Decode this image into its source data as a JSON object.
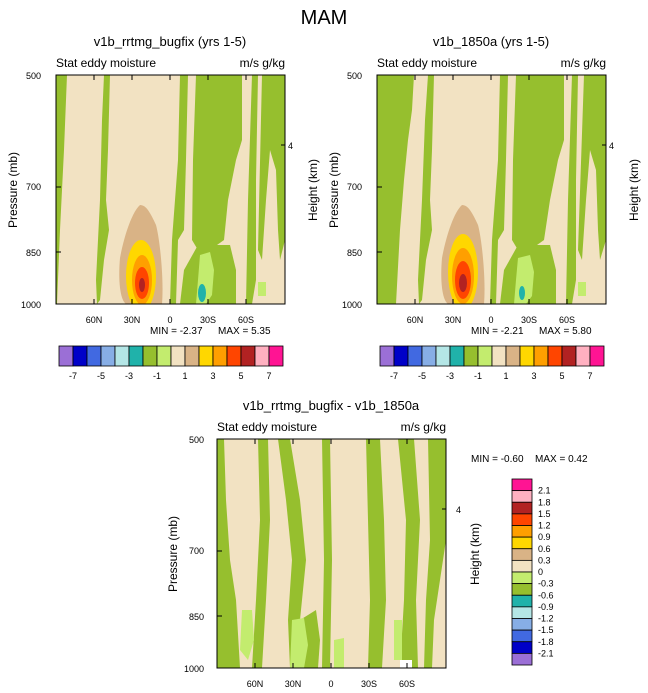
{
  "page_title": "MAM",
  "colors": {
    "beige": "#f2e2c2",
    "green": "#96bf2e",
    "lightgreen": "#c3ec6e",
    "tan": "#d9b386",
    "yellow": "#ffd700",
    "orange": "#ff9f00",
    "red": "#ff4500",
    "darkred": "#b22222",
    "teal": "#20b2aa",
    "frame": "#000000"
  },
  "chart_data": [
    {
      "type": "contour",
      "title": "v1b_rrtmg_bugfix (yrs 1-5)",
      "left_label": "Stat eddy moisture",
      "right_label": "m/s g/kg",
      "ylabel": "Pressure (mb)",
      "ylabel_right": "Height (km)",
      "y_ticks": [
        "500",
        "700",
        "850",
        "1000"
      ],
      "y_right_ticks": [
        "4"
      ],
      "x_ticks": [
        "60N",
        "30N",
        "0",
        "30S",
        "60S"
      ],
      "x_range": [
        90,
        -90
      ],
      "ylim": [
        1000,
        500
      ],
      "min_label": "MIN = -2.37",
      "max_label": "MAX =  5.35",
      "min": -2.37,
      "max": 5.35,
      "colorbar": {
        "orientation": "horizontal",
        "labels": [
          "-7",
          "-5",
          "-3",
          "-1",
          "1",
          "3",
          "5",
          "7"
        ],
        "levels": [
          -7,
          -6,
          -5,
          -4,
          -3,
          -2,
          -1,
          0,
          1,
          2,
          3,
          4,
          5,
          6,
          7
        ],
        "colors": [
          "#9b6fd6",
          "#0000c8",
          "#4169e1",
          "#87aee6",
          "#b4e6e6",
          "#20b2aa",
          "#96bf2e",
          "#c3ec6e",
          "#f2e2c2",
          "#d9b386",
          "#ffd700",
          "#ff9f00",
          "#ff4500",
          "#b22222",
          "#ffb0c0",
          "#ff1493"
        ]
      }
    },
    {
      "type": "contour",
      "title": "v1b_1850a (yrs 1-5)",
      "left_label": "Stat eddy moisture",
      "right_label": "m/s g/kg",
      "ylabel": "Pressure (mb)",
      "ylabel_right": "Height (km)",
      "y_ticks": [
        "500",
        "700",
        "850",
        "1000"
      ],
      "y_right_ticks": [
        "4"
      ],
      "x_ticks": [
        "60N",
        "30N",
        "0",
        "30S",
        "60S"
      ],
      "x_range": [
        90,
        -90
      ],
      "ylim": [
        1000,
        500
      ],
      "min_label": "MIN = -2.21",
      "max_label": "MAX =  5.80",
      "min": -2.21,
      "max": 5.8,
      "colorbar": {
        "orientation": "horizontal",
        "labels": [
          "-7",
          "-5",
          "-3",
          "-1",
          "1",
          "3",
          "5",
          "7"
        ],
        "levels": [
          -7,
          -6,
          -5,
          -4,
          -3,
          -2,
          -1,
          0,
          1,
          2,
          3,
          4,
          5,
          6,
          7
        ],
        "colors": [
          "#9b6fd6",
          "#0000c8",
          "#4169e1",
          "#87aee6",
          "#b4e6e6",
          "#20b2aa",
          "#96bf2e",
          "#c3ec6e",
          "#f2e2c2",
          "#d9b386",
          "#ffd700",
          "#ff9f00",
          "#ff4500",
          "#b22222",
          "#ffb0c0",
          "#ff1493"
        ]
      }
    },
    {
      "type": "contour",
      "title": "v1b_rrtmg_bugfix - v1b_1850a",
      "left_label": "Stat eddy moisture",
      "right_label": "m/s g/kg",
      "ylabel": "Pressure (mb)",
      "ylabel_right": "Height (km)",
      "y_ticks": [
        "500",
        "700",
        "850",
        "1000"
      ],
      "y_right_ticks": [
        "4"
      ],
      "x_ticks": [
        "60N",
        "30N",
        "0",
        "30S",
        "60S"
      ],
      "x_range": [
        90,
        -90
      ],
      "ylim": [
        1000,
        500
      ],
      "min_label": "MIN = -0.60",
      "max_label": "MAX =  0.42",
      "min": -0.6,
      "max": 0.42,
      "colorbar": {
        "orientation": "vertical",
        "labels": [
          "2.1",
          "1.8",
          "1.5",
          "1.2",
          "0.9",
          "0.6",
          "0.3",
          "0",
          "-0.3",
          "-0.6",
          "-0.9",
          "-1.2",
          "-1.5",
          "-1.8",
          "-2.1"
        ],
        "colors": [
          "#ff1493",
          "#ffb0c0",
          "#b22222",
          "#ff4500",
          "#ff9f00",
          "#ffd700",
          "#d9b386",
          "#f2e2c2",
          "#c3ec6e",
          "#96bf2e",
          "#20b2aa",
          "#b4e6e6",
          "#87aee6",
          "#4169e1",
          "#0000c8",
          "#9b6fd6"
        ]
      }
    }
  ]
}
